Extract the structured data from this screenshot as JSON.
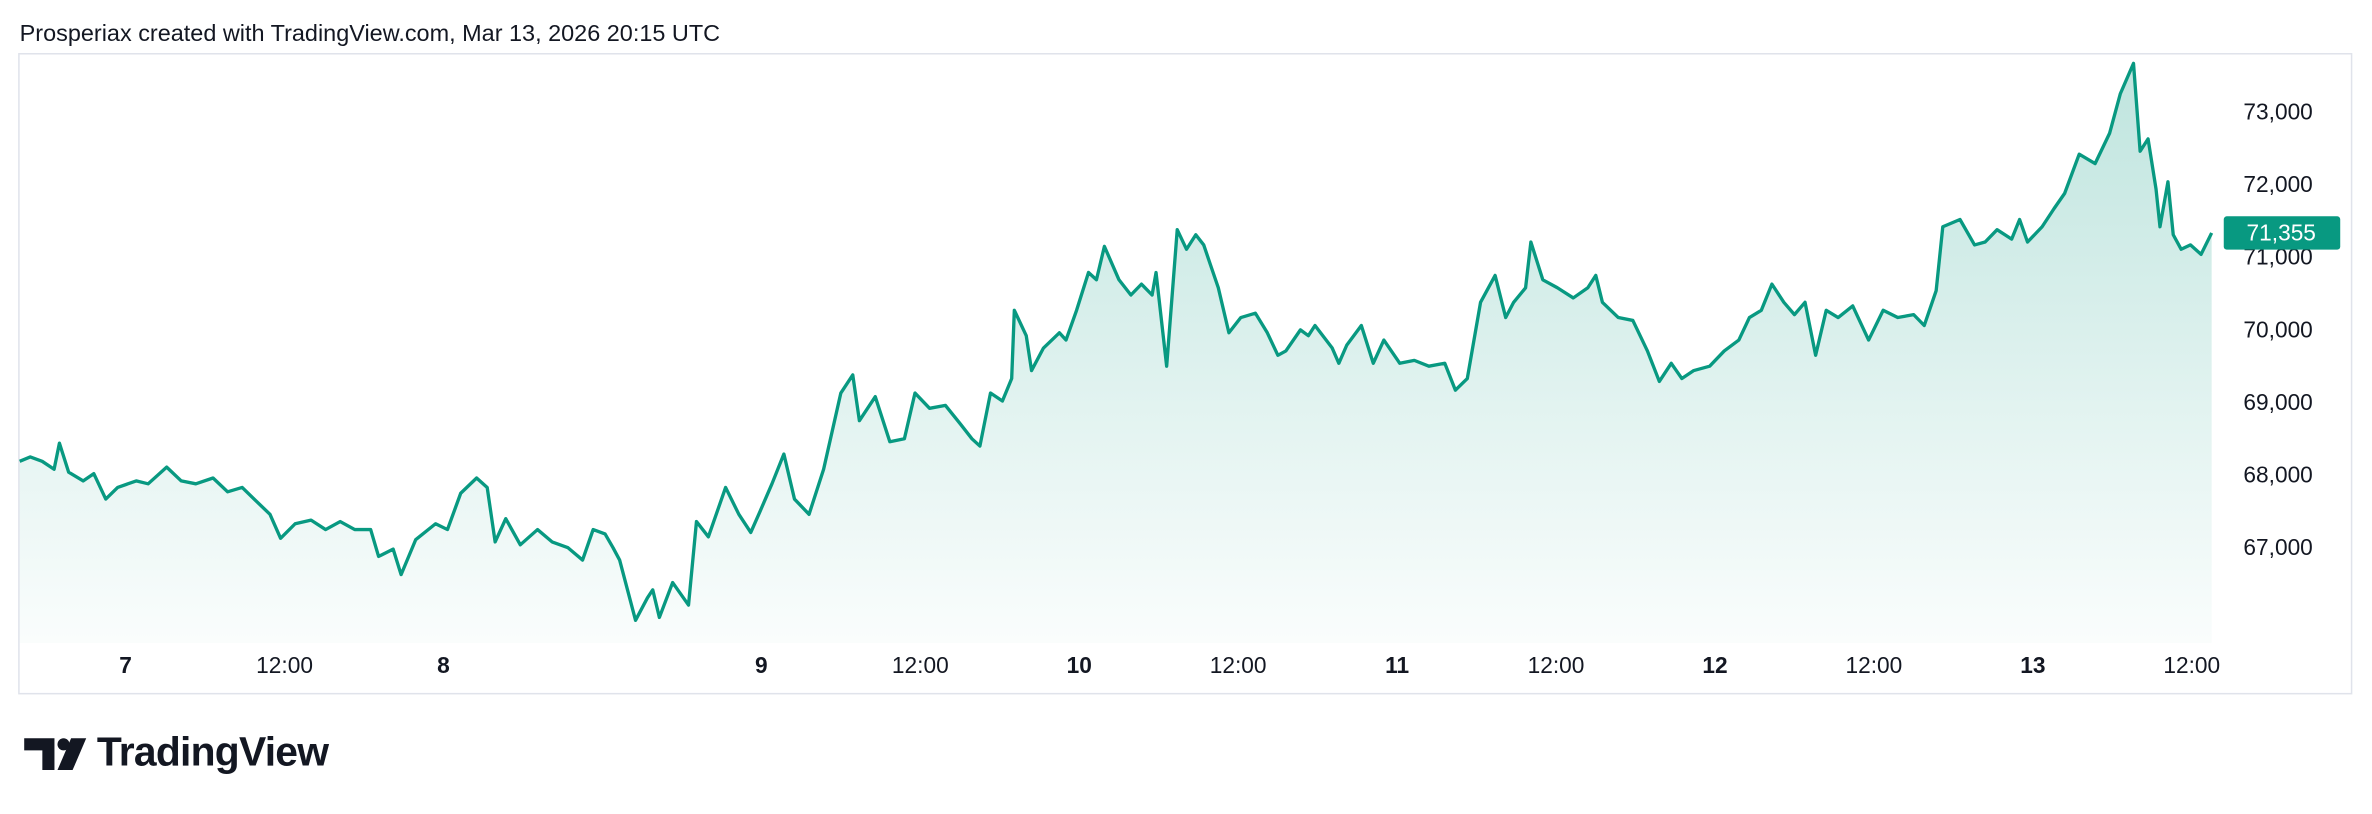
{
  "header": {
    "text": "Prosperiax created with TradingView.com, Mar 13, 2026 20:15 UTC"
  },
  "brand": "TradingView",
  "chart_data": {
    "type": "area",
    "color": "#089981",
    "x": [
      -8.0,
      -7.2,
      -6.3,
      -5.4,
      -5.0,
      -4.3,
      -3.2,
      -2.4,
      -1.5,
      -0.6,
      0.8,
      1.7,
      3.1,
      4.2,
      5.3,
      6.6,
      7.7,
      8.8,
      9.7,
      10.9,
      11.7,
      12.8,
      14.0,
      15.1,
      16.2,
      17.3,
      18.5,
      19.1,
      20.2,
      20.8,
      21.9,
      23.4,
      24.3,
      25.3,
      26.5,
      27.3,
      27.9,
      28.7,
      29.8,
      31.1,
      32.2,
      33.4,
      34.5,
      35.3,
      36.2,
      36.8,
      37.3,
      38.5,
      39.4,
      39.8,
      40.3,
      41.3,
      42.5,
      43.1,
      44.0,
      45.3,
      46.3,
      47.2,
      47.9,
      48.8,
      49.7,
      50.5,
      51.6,
      52.7,
      54.0,
      54.9,
      55.4,
      56.6,
      57.7,
      58.8,
      59.6,
      60.7,
      61.9,
      63.0,
      63.9,
      64.5,
      65.3,
      66.2,
      66.9,
      67.1,
      68.0,
      68.4,
      69.3,
      70.5,
      71.0,
      71.8,
      72.7,
      73.3,
      73.9,
      75.0,
      75.9,
      76.7,
      77.5,
      77.8,
      78.6,
      79.4,
      80.1,
      80.8,
      81.4,
      81.9,
      82.5,
      83.3,
      84.2,
      85.3,
      86.2,
      87.0,
      87.6,
      88.7,
      89.3,
      89.8,
      91.1,
      91.6,
      92.2,
      93.3,
      94.2,
      95.0,
      96.2,
      97.3,
      98.4,
      99.6,
      100.4,
      101.3,
      102.3,
      103.4,
      104.2,
      104.8,
      105.7,
      106.1,
      107.0,
      108.1,
      109.3,
      110.4,
      111.0,
      111.5,
      112.7,
      113.8,
      114.9,
      115.8,
      116.7,
      117.5,
      118.4,
      119.6,
      120.7,
      121.8,
      122.6,
      123.5,
      124.3,
      125.2,
      126.0,
      126.8,
      127.6,
      128.4,
      129.3,
      130.4,
      131.6,
      132.7,
      133.8,
      135.0,
      135.8,
      136.7,
      137.2,
      138.5,
      139.6,
      140.4,
      141.3,
      142.4,
      143.0,
      143.6,
      144.7,
      145.6,
      146.4,
      147.5,
      148.7,
      149.8,
      150.6,
      151.6,
      152.1,
      152.7,
      153.3,
      153.6,
      154.2,
      154.6,
      155.2,
      155.9,
      156.7,
      157.5
    ],
    "values": [
      68210,
      68270,
      68210,
      68100,
      68460,
      68060,
      67940,
      68040,
      67690,
      67850,
      67940,
      67900,
      68130,
      67940,
      67900,
      67980,
      67790,
      67850,
      67690,
      67480,
      67150,
      67350,
      67400,
      67270,
      67380,
      67270,
      67270,
      66900,
      67000,
      66650,
      67130,
      67350,
      67270,
      67770,
      67980,
      67850,
      67100,
      67420,
      67060,
      67270,
      67100,
      67020,
      66850,
      67270,
      67210,
      67020,
      66850,
      66020,
      66330,
      66440,
      66060,
      66540,
      66230,
      67380,
      67170,
      67850,
      67480,
      67230,
      67520,
      67900,
      68310,
      67690,
      67480,
      68100,
      69150,
      69400,
      68770,
      69100,
      68480,
      68520,
      69150,
      68940,
      68980,
      68730,
      68520,
      68420,
      69150,
      69040,
      69350,
      70290,
      69940,
      69460,
      69770,
      69980,
      69880,
      70290,
      70810,
      70710,
      71170,
      70710,
      70500,
      70650,
      70500,
      70810,
      69520,
      71400,
      71130,
      71330,
      71190,
      70920,
      70600,
      69980,
      70190,
      70250,
      69980,
      69670,
      69730,
      70020,
      69940,
      70080,
      69770,
      69560,
      69810,
      70080,
      69560,
      69880,
      69560,
      69600,
      69520,
      69560,
      69190,
      69350,
      70400,
      70770,
      70190,
      70400,
      70600,
      71230,
      70710,
      70600,
      70460,
      70600,
      70770,
      70400,
      70190,
      70150,
      69730,
      69310,
      69560,
      69350,
      69460,
      69520,
      69730,
      69880,
      70190,
      70290,
      70650,
      70400,
      70230,
      70400,
      69670,
      70290,
      70190,
      70350,
      69880,
      70290,
      70190,
      70230,
      70080,
      70560,
      71440,
      71540,
      71190,
      71230,
      71400,
      71270,
      71540,
      71230,
      71440,
      71690,
      71900,
      72440,
      72310,
      72730,
      73270,
      73690,
      72480,
      72650,
      71960,
      71440,
      72060,
      71330,
      71130,
      71190,
      71060,
      71355
    ],
    "last_value": {
      "value": 71355,
      "label": "71,355"
    },
    "xlim": [
      -8.0,
      157.5
    ],
    "xticks": [
      {
        "value": 0,
        "label": "7"
      },
      {
        "value": 12,
        "label": "12:00"
      },
      {
        "value": 24,
        "label": "8"
      },
      {
        "value": 48,
        "label": "9"
      },
      {
        "value": 60,
        "label": "12:00"
      },
      {
        "value": 72,
        "label": "10"
      },
      {
        "value": 84,
        "label": "12:00"
      },
      {
        "value": 96,
        "label": "11"
      },
      {
        "value": 108,
        "label": "12:00"
      },
      {
        "value": 120,
        "label": "12"
      },
      {
        "value": 132,
        "label": "12:00"
      },
      {
        "value": 144,
        "label": "13"
      },
      {
        "value": 156,
        "label": "12:00"
      }
    ],
    "ylim": [
      65708,
      73833
    ],
    "yticks": [
      {
        "value": 67000,
        "label": "67,000"
      },
      {
        "value": 68000,
        "label": "68,000"
      },
      {
        "value": 69000,
        "label": "69,000"
      },
      {
        "value": 70000,
        "label": "70,000"
      },
      {
        "value": 71000,
        "label": "71,000"
      },
      {
        "value": 72000,
        "label": "72,000"
      },
      {
        "value": 73000,
        "label": "73,000"
      }
    ],
    "grid": false
  }
}
